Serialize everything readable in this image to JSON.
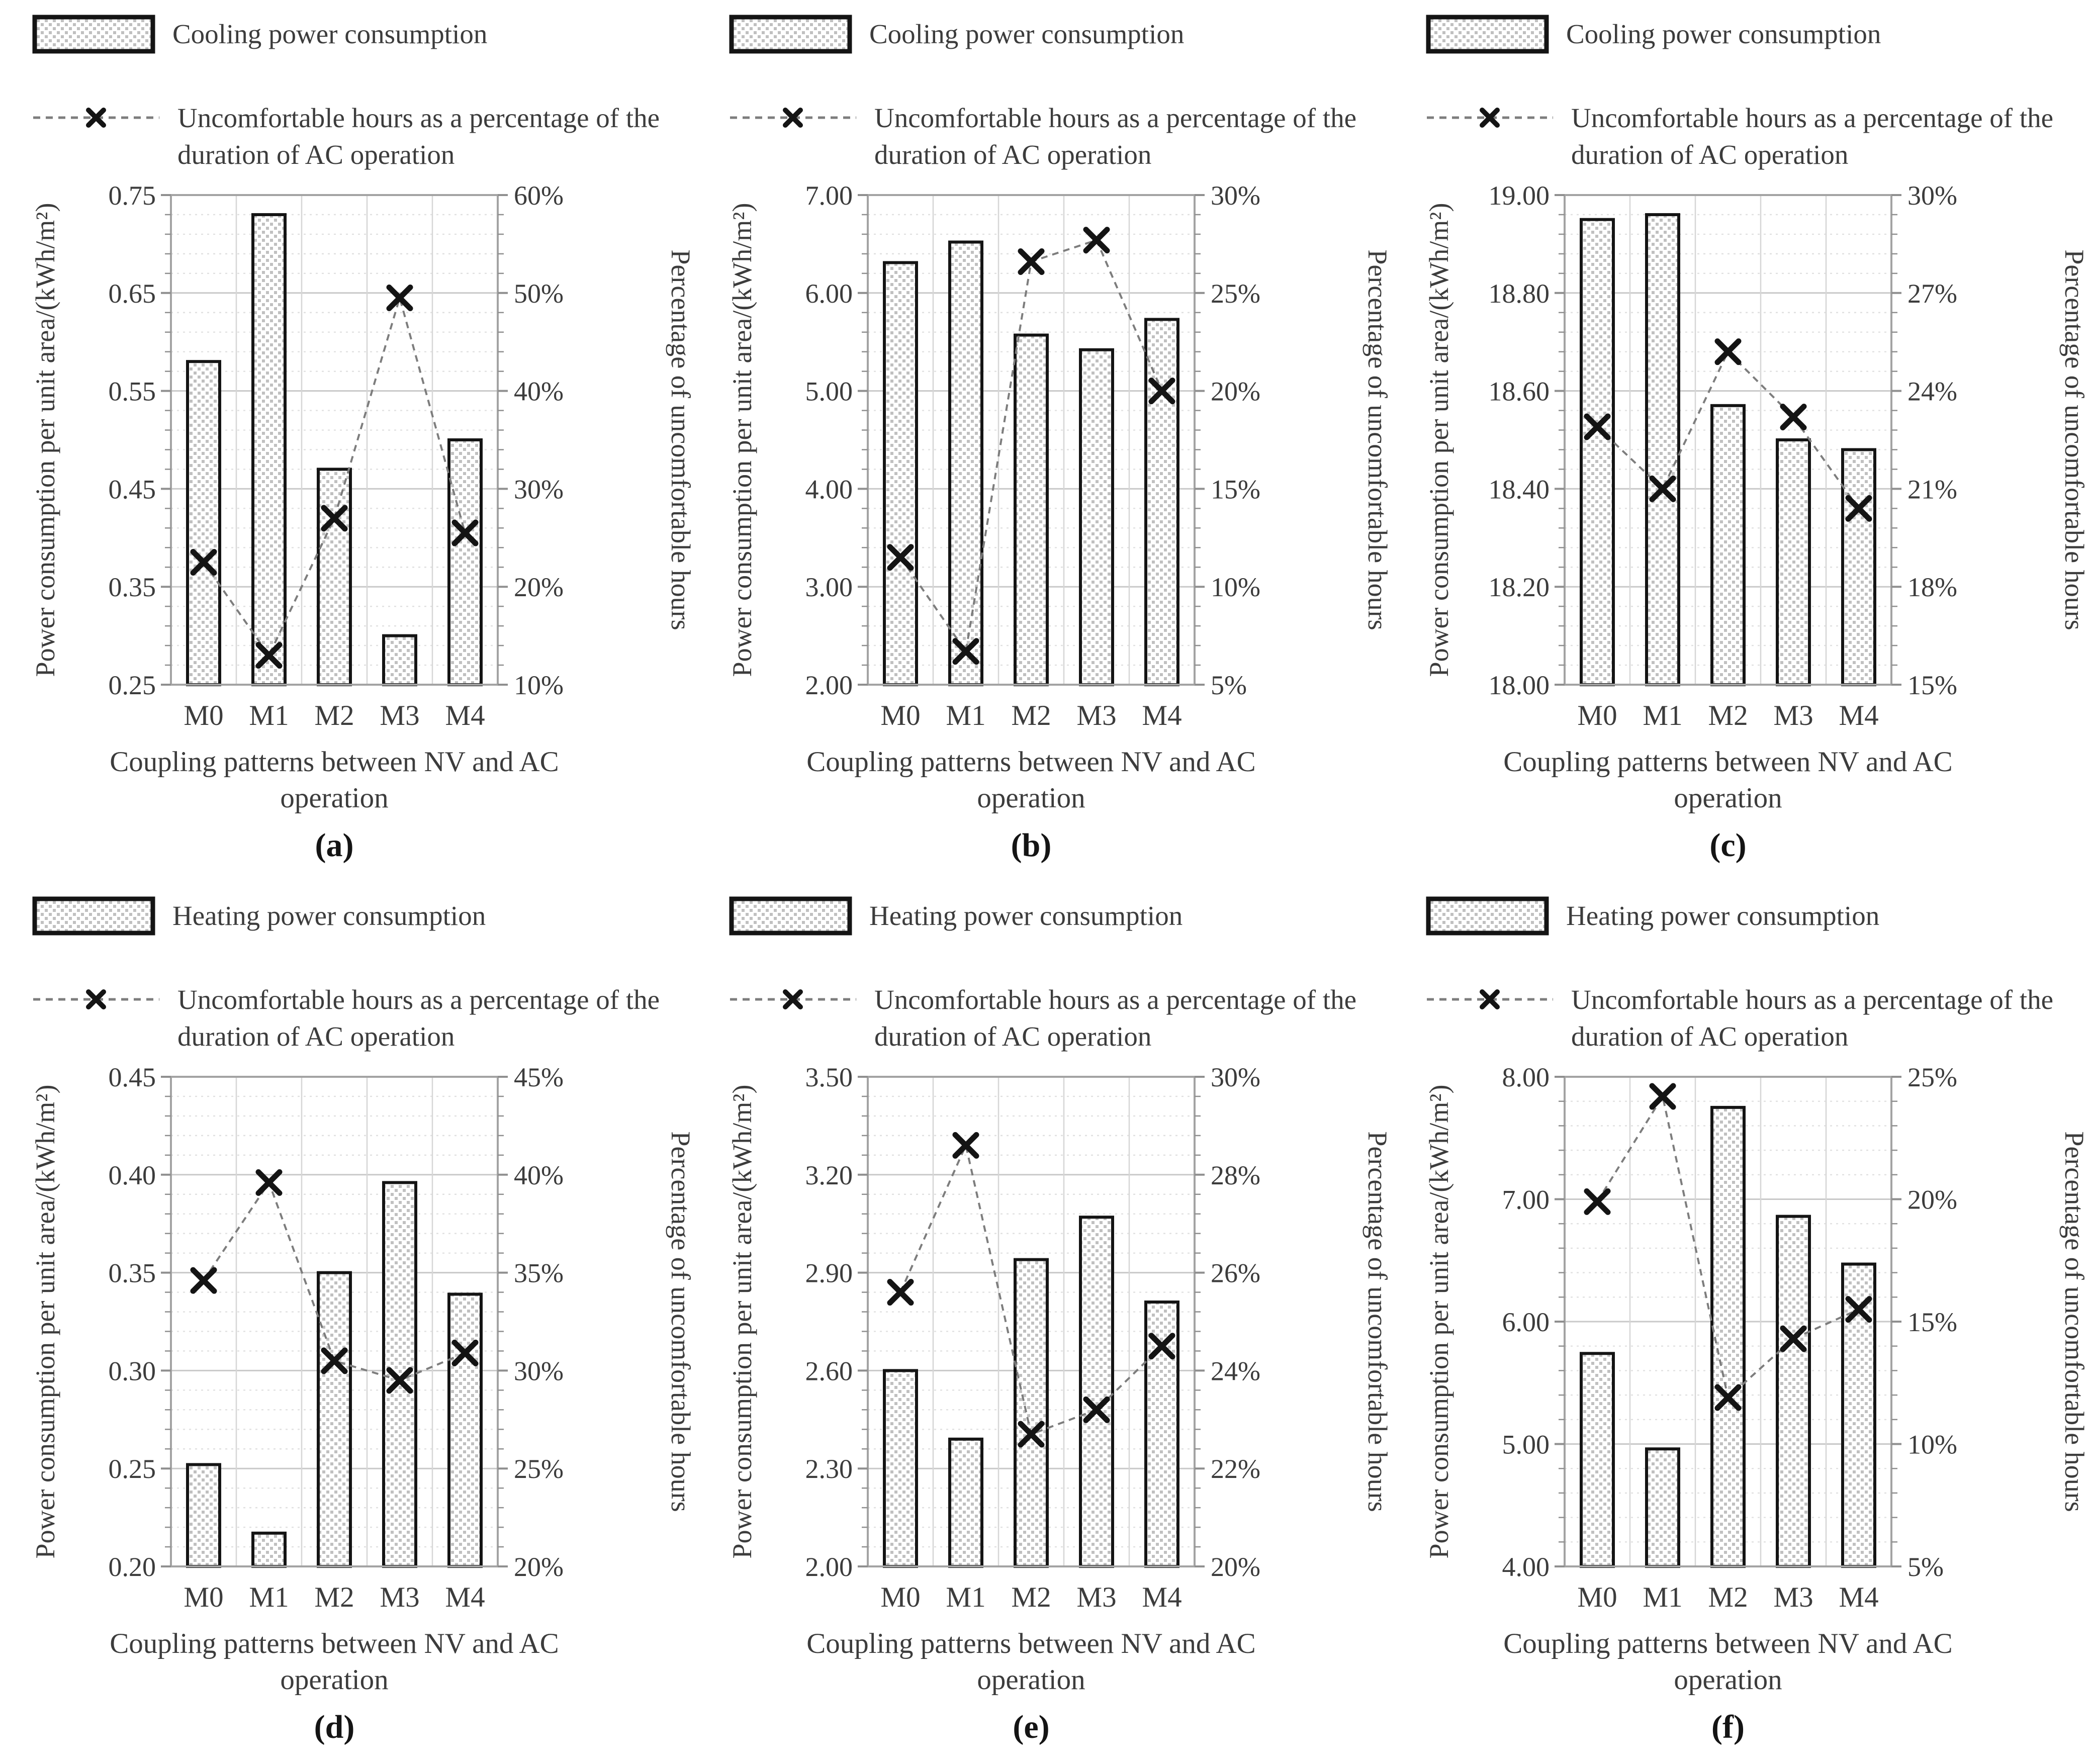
{
  "figure_title": "",
  "chart_data": [
    {
      "id": "a",
      "panel_label": "(a)",
      "type": "bar+line",
      "categories": [
        "M0",
        "M1",
        "M2",
        "M3",
        "M4"
      ],
      "xlabel": "Coupling patterns between NV and AC operation",
      "xlabel_lines": [
        "Coupling patterns between NV and AC",
        "operation"
      ],
      "left_axis": {
        "title": "Power consumption per unit area/(kWh/m²)",
        "min": 0.25,
        "max": 0.75,
        "tick_labels": [
          "0.25",
          "0.35",
          "0.45",
          "0.55",
          "0.65",
          "0.75"
        ],
        "minor_divisions": 5
      },
      "right_axis": {
        "title": "Percentage of uncomfortable hours",
        "min": 10,
        "max": 60,
        "tick_labels": [
          "10%",
          "20%",
          "30%",
          "40%",
          "50%",
          "60%"
        ]
      },
      "bar_series": {
        "name": "Cooling power consumption",
        "axis": "left",
        "values": [
          0.58,
          0.73,
          0.47,
          0.3,
          0.5
        ]
      },
      "line_series": {
        "name": "Uncomfortable hours as a percentage of the duration of AC operation",
        "axis": "right",
        "values": [
          22.5,
          13.0,
          27.0,
          49.5,
          25.5
        ]
      }
    },
    {
      "id": "b",
      "panel_label": "(b)",
      "type": "bar+line",
      "categories": [
        "M0",
        "M1",
        "M2",
        "M3",
        "M4"
      ],
      "xlabel": "Coupling patterns between NV and AC operation",
      "xlabel_lines": [
        "Coupling patterns between NV and AC",
        "operation"
      ],
      "left_axis": {
        "title": "Power consumption per unit area/(kWh/m²)",
        "min": 2.0,
        "max": 7.0,
        "tick_labels": [
          "2.00",
          "3.00",
          "4.00",
          "5.00",
          "6.00",
          "7.00"
        ],
        "minor_divisions": 5
      },
      "right_axis": {
        "title": "Percentage of uncomfortable hours",
        "min": 5,
        "max": 30,
        "tick_labels": [
          "5%",
          "10%",
          "15%",
          "20%",
          "25%",
          "30%"
        ]
      },
      "bar_series": {
        "name": "Cooling power consumption",
        "axis": "left",
        "values": [
          6.31,
          6.52,
          5.57,
          5.42,
          5.73
        ]
      },
      "line_series": {
        "name": "Uncomfortable hours as a percentage of the duration of AC operation",
        "axis": "right",
        "values": [
          11.5,
          6.7,
          26.6,
          27.7,
          20.0
        ]
      }
    },
    {
      "id": "c",
      "panel_label": "(c)",
      "type": "bar+line",
      "categories": [
        "M0",
        "M1",
        "M2",
        "M3",
        "M4"
      ],
      "xlabel": "Coupling patterns between NV and AC operation",
      "xlabel_lines": [
        "Coupling patterns between NV and AC",
        "operation"
      ],
      "left_axis": {
        "title": "Power consumption per unit area/(kWh/m²)",
        "min": 18.0,
        "max": 19.0,
        "tick_labels": [
          "18.00",
          "18.20",
          "18.40",
          "18.60",
          "18.80",
          "19.00"
        ],
        "minor_divisions": 5
      },
      "right_axis": {
        "title": "Percentage of uncomfortable hours",
        "min": 15,
        "max": 30,
        "tick_labels": [
          "15%",
          "18%",
          "21%",
          "24%",
          "27%",
          "30%"
        ]
      },
      "bar_series": {
        "name": "Cooling power consumption",
        "axis": "left",
        "values": [
          18.95,
          18.96,
          18.57,
          18.5,
          18.48
        ]
      },
      "line_series": {
        "name": "Uncomfortable hours as a percentage of the duration of AC operation",
        "axis": "right",
        "values": [
          22.9,
          21.0,
          25.2,
          23.2,
          20.4
        ]
      }
    },
    {
      "id": "d",
      "panel_label": "(d)",
      "type": "bar+line",
      "categories": [
        "M0",
        "M1",
        "M2",
        "M3",
        "M4"
      ],
      "xlabel": "Coupling patterns between NV and AC operation",
      "xlabel_lines": [
        "Coupling patterns between NV and AC",
        "operation"
      ],
      "left_axis": {
        "title": "Power consumption per unit area/(kWh/m²)",
        "min": 0.2,
        "max": 0.45,
        "tick_labels": [
          "0.20",
          "0.25",
          "0.30",
          "0.35",
          "0.40",
          "0.45"
        ],
        "minor_divisions": 5
      },
      "right_axis": {
        "title": "Percentage of uncomfortable hours",
        "min": 20,
        "max": 45,
        "tick_labels": [
          "20%",
          "25%",
          "30%",
          "35%",
          "40%",
          "45%"
        ]
      },
      "bar_series": {
        "name": "Heating power consumption",
        "axis": "left",
        "values": [
          0.252,
          0.217,
          0.35,
          0.396,
          0.339
        ]
      },
      "line_series": {
        "name": "Uncomfortable hours as a percentage of the duration of AC operation",
        "axis": "right",
        "values": [
          34.6,
          39.6,
          30.5,
          29.5,
          30.9
        ]
      }
    },
    {
      "id": "e",
      "panel_label": "(e)",
      "type": "bar+line",
      "categories": [
        "M0",
        "M1",
        "M2",
        "M3",
        "M4"
      ],
      "xlabel": "Coupling patterns between NV and AC operation",
      "xlabel_lines": [
        "Coupling patterns between NV and AC",
        "operation"
      ],
      "left_axis": {
        "title": "Power consumption per unit area/(kWh/m²)",
        "min": 2.0,
        "max": 3.5,
        "tick_labels": [
          "2.00",
          "2.30",
          "2.60",
          "2.90",
          "3.20",
          "3.50"
        ],
        "minor_divisions": 5
      },
      "right_axis": {
        "title": "Percentage of uncomfortable hours",
        "min": 20,
        "max": 30,
        "tick_labels": [
          "20%",
          "22%",
          "24%",
          "26%",
          "28%",
          "30%"
        ]
      },
      "bar_series": {
        "name": "Heating power consumption",
        "axis": "left",
        "values": [
          2.6,
          2.39,
          2.94,
          3.07,
          2.81
        ]
      },
      "line_series": {
        "name": "Uncomfortable hours as a percentage of the duration of AC operation",
        "axis": "right",
        "values": [
          25.6,
          28.6,
          22.7,
          23.2,
          24.5
        ]
      }
    },
    {
      "id": "f",
      "panel_label": "(f)",
      "type": "bar+line",
      "categories": [
        "M0",
        "M1",
        "M2",
        "M3",
        "M4"
      ],
      "xlabel": "Coupling patterns between NV and AC operation",
      "xlabel_lines": [
        "Coupling patterns between NV and AC",
        "operation"
      ],
      "left_axis": {
        "title": "Power consumption per unit area/(kWh/m²)",
        "min": 4.0,
        "max": 8.0,
        "tick_labels": [
          "4.00",
          "5.00",
          "6.00",
          "7.00",
          "8.00"
        ],
        "minor_divisions": 5
      },
      "right_axis": {
        "title": "Percentage of uncomfortable hours",
        "min": 5,
        "max": 25,
        "tick_labels": [
          "5%",
          "10%",
          "15%",
          "20%",
          "25%"
        ]
      },
      "bar_series": {
        "name": "Heating power consumption",
        "axis": "left",
        "values": [
          5.74,
          4.96,
          7.75,
          6.86,
          6.47
        ]
      },
      "line_series": {
        "name": "Uncomfortable hours as a percentage of the duration of AC operation",
        "axis": "right",
        "values": [
          19.9,
          24.2,
          11.9,
          14.3,
          15.5
        ]
      }
    }
  ],
  "style_colors": {
    "bar_pattern_dot": "#c0c0c0",
    "bar_border": "#141414",
    "marker": "#141414",
    "dashed_line": "#7d7d7d",
    "major_gridline": "#c9c9c9",
    "minor_gridline": "#e0e0e0",
    "axis_line": "#8f8f8f",
    "text": "#3c3c3c"
  }
}
